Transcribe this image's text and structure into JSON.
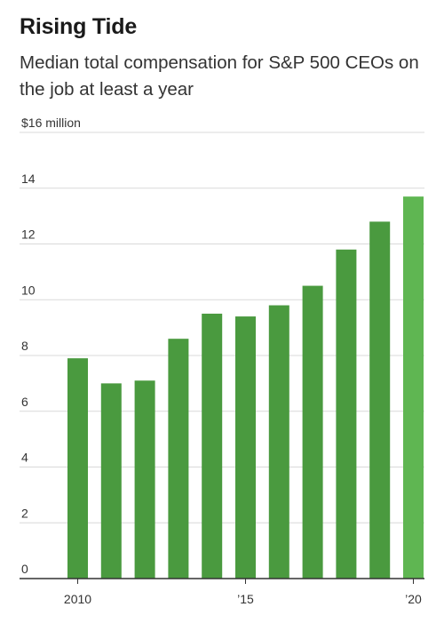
{
  "header": {
    "title": "Rising Tide",
    "subtitle": "Median total compensation for S&P 500 CEOs on the job at least a year"
  },
  "colors": {
    "bar": "#4a9a3f",
    "bar_highlight": "#5fb652",
    "grid": "#d9d9d9",
    "axis": "#333333"
  },
  "chart_data": {
    "type": "bar",
    "title": "Rising Tide",
    "subtitle": "Median total compensation for S&P 500 CEOs on the job at least a year",
    "xlabel": "",
    "ylabel": "",
    "y_unit_label": "$16 million",
    "categories": [
      "2010",
      "2011",
      "2012",
      "2013",
      "2014",
      "2015",
      "2016",
      "2017",
      "2018",
      "2019",
      "2020"
    ],
    "x_tick_labels": [
      "2010",
      "",
      "",
      "",
      "",
      "’15",
      "",
      "",
      "",
      "",
      "’20"
    ],
    "values": [
      7.9,
      7.0,
      7.1,
      8.6,
      9.5,
      9.4,
      9.8,
      10.5,
      11.8,
      12.8,
      13.7
    ],
    "highlight_index": 10,
    "ylim": [
      0,
      16
    ],
    "y_ticks": [
      0,
      2,
      4,
      6,
      8,
      10,
      12,
      14,
      16
    ],
    "y_tick_labels": [
      "0",
      "2",
      "4",
      "6",
      "8",
      "10",
      "12",
      "14",
      "$16 million"
    ],
    "grid": true,
    "legend": "none"
  }
}
